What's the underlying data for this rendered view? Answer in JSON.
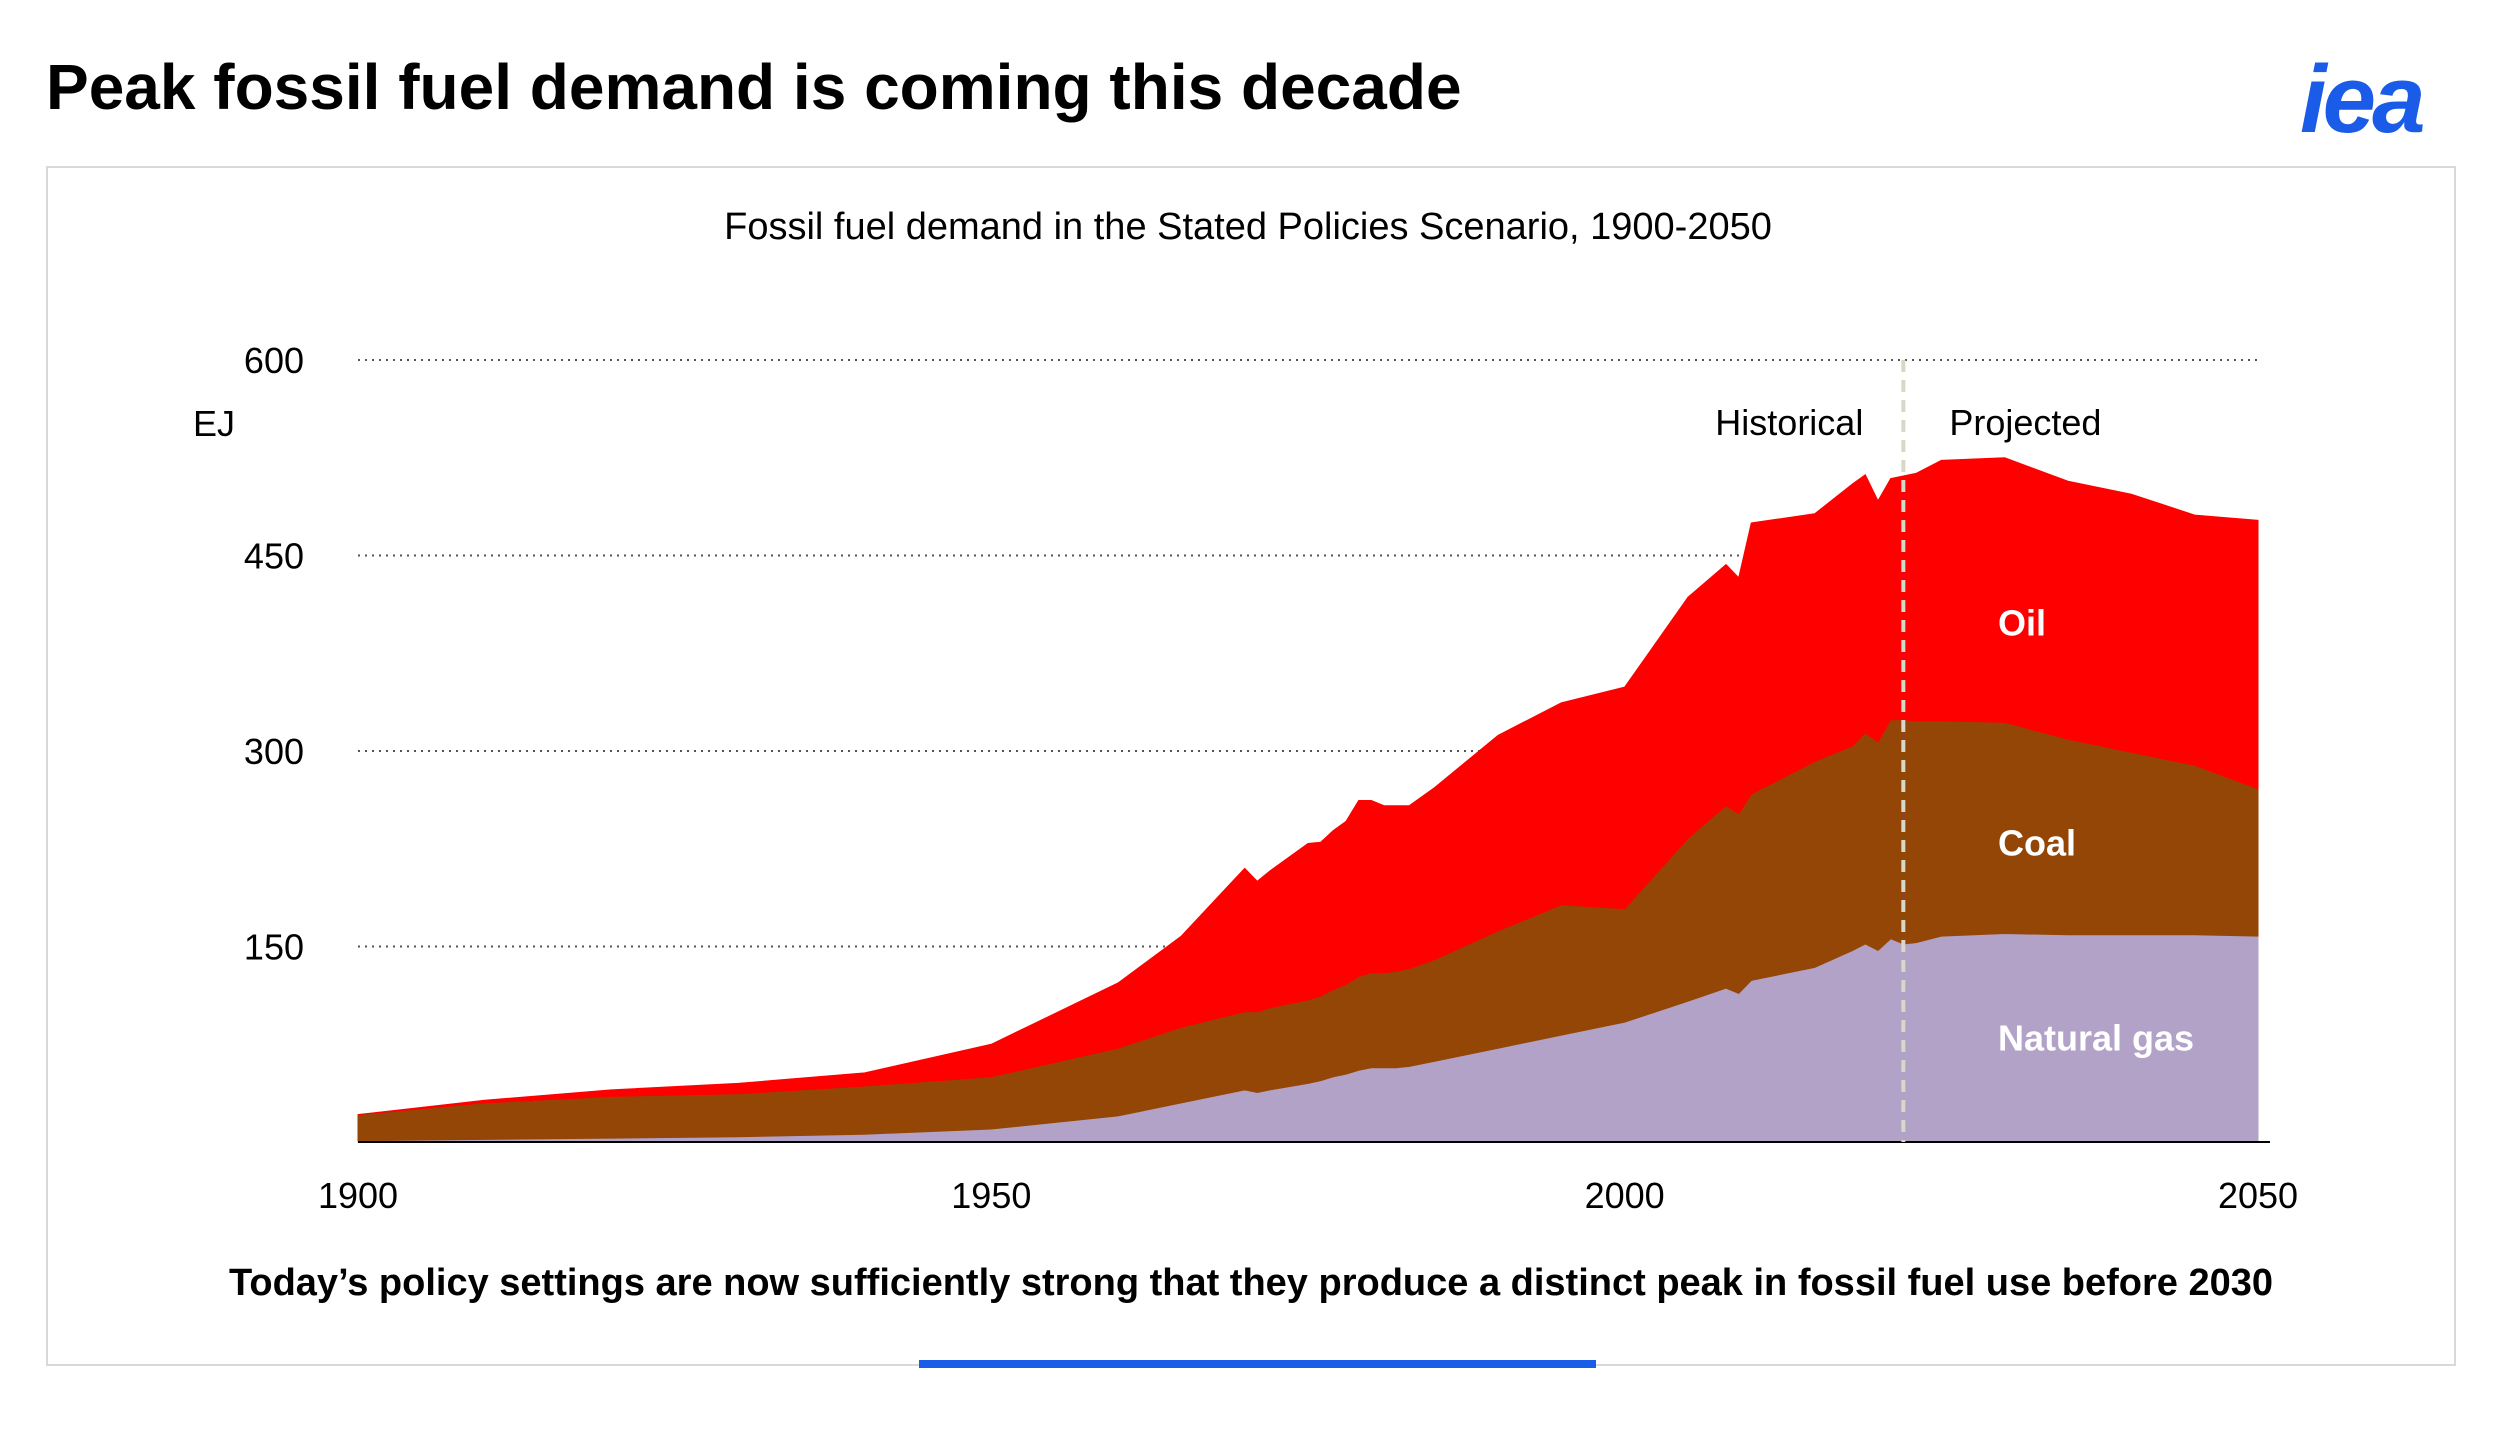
{
  "header": {
    "title": "Peak fossil fuel demand is coming this decade",
    "logo_text": "iea",
    "logo_color": "#1a5ce8"
  },
  "footer": {
    "caption": "Today’s policy settings are now sufficiently strong that they produce a distinct peak in fossil fuel use before 2030"
  },
  "chart_data": {
    "type": "area",
    "stacked": true,
    "title": "Fossil fuel demand in the Stated Policies Scenario, 1900-2050",
    "ylabel": "EJ",
    "xlim": [
      1900,
      2050
    ],
    "ylim": [
      0,
      600
    ],
    "x_ticks": [
      1900,
      1950,
      2000,
      2050
    ],
    "y_ticks": [
      150,
      300,
      450,
      600
    ],
    "grid": "horizontal dotted",
    "annotations": {
      "historical": "Historical",
      "projected": "Projected",
      "divider_year": 2022
    },
    "x": [
      1900,
      1910,
      1920,
      1930,
      1940,
      1950,
      1960,
      1965,
      1970,
      1971,
      1972,
      1975,
      1976,
      1977,
      1978,
      1979,
      1980,
      1981,
      1982,
      1983,
      1985,
      1990,
      1995,
      2000,
      2005,
      2008,
      2009,
      2010,
      2015,
      2018,
      2019,
      2020,
      2021,
      2022,
      2023,
      2025,
      2030,
      2035,
      2040,
      2045,
      2050
    ],
    "series": [
      {
        "name": "Natural gas",
        "color": "#b3a2c8",
        "label": "Natural gas",
        "values": [
          1,
          2,
          3,
          4,
          6,
          10,
          20,
          30,
          40,
          38,
          40,
          45,
          47,
          50,
          52,
          55,
          57,
          57,
          57,
          58,
          62,
          72,
          82,
          92,
          108,
          118,
          114,
          124,
          134,
          147,
          152,
          147,
          156,
          152,
          153,
          158,
          160,
          159,
          159,
          159,
          158
        ]
      },
      {
        "name": "Coal",
        "color": "#944606",
        "label": "Coal",
        "values": [
          20,
          28,
          32,
          33,
          37,
          40,
          52,
          58,
          60,
          62,
          63,
          64,
          65,
          67,
          69,
          72,
          73,
          73,
          74,
          75,
          78,
          90,
          100,
          87,
          125,
          140,
          138,
          143,
          158,
          157,
          162,
          160,
          168,
          172,
          170,
          165,
          162,
          150,
          140,
          130,
          113
        ]
      },
      {
        "name": "Oil",
        "color": "#ff0000",
        "label": "Oil",
        "values": [
          0,
          2,
          5,
          8,
          10,
          25,
          50,
          70,
          110,
          100,
          105,
          120,
          118,
          122,
          125,
          135,
          132,
          128,
          127,
          125,
          132,
          150,
          155,
          170,
          185,
          185,
          181,
          208,
          190,
          201,
          198,
          185,
          185,
          187,
          190,
          200,
          203,
          198,
          198,
          192,
          206
        ]
      }
    ]
  }
}
